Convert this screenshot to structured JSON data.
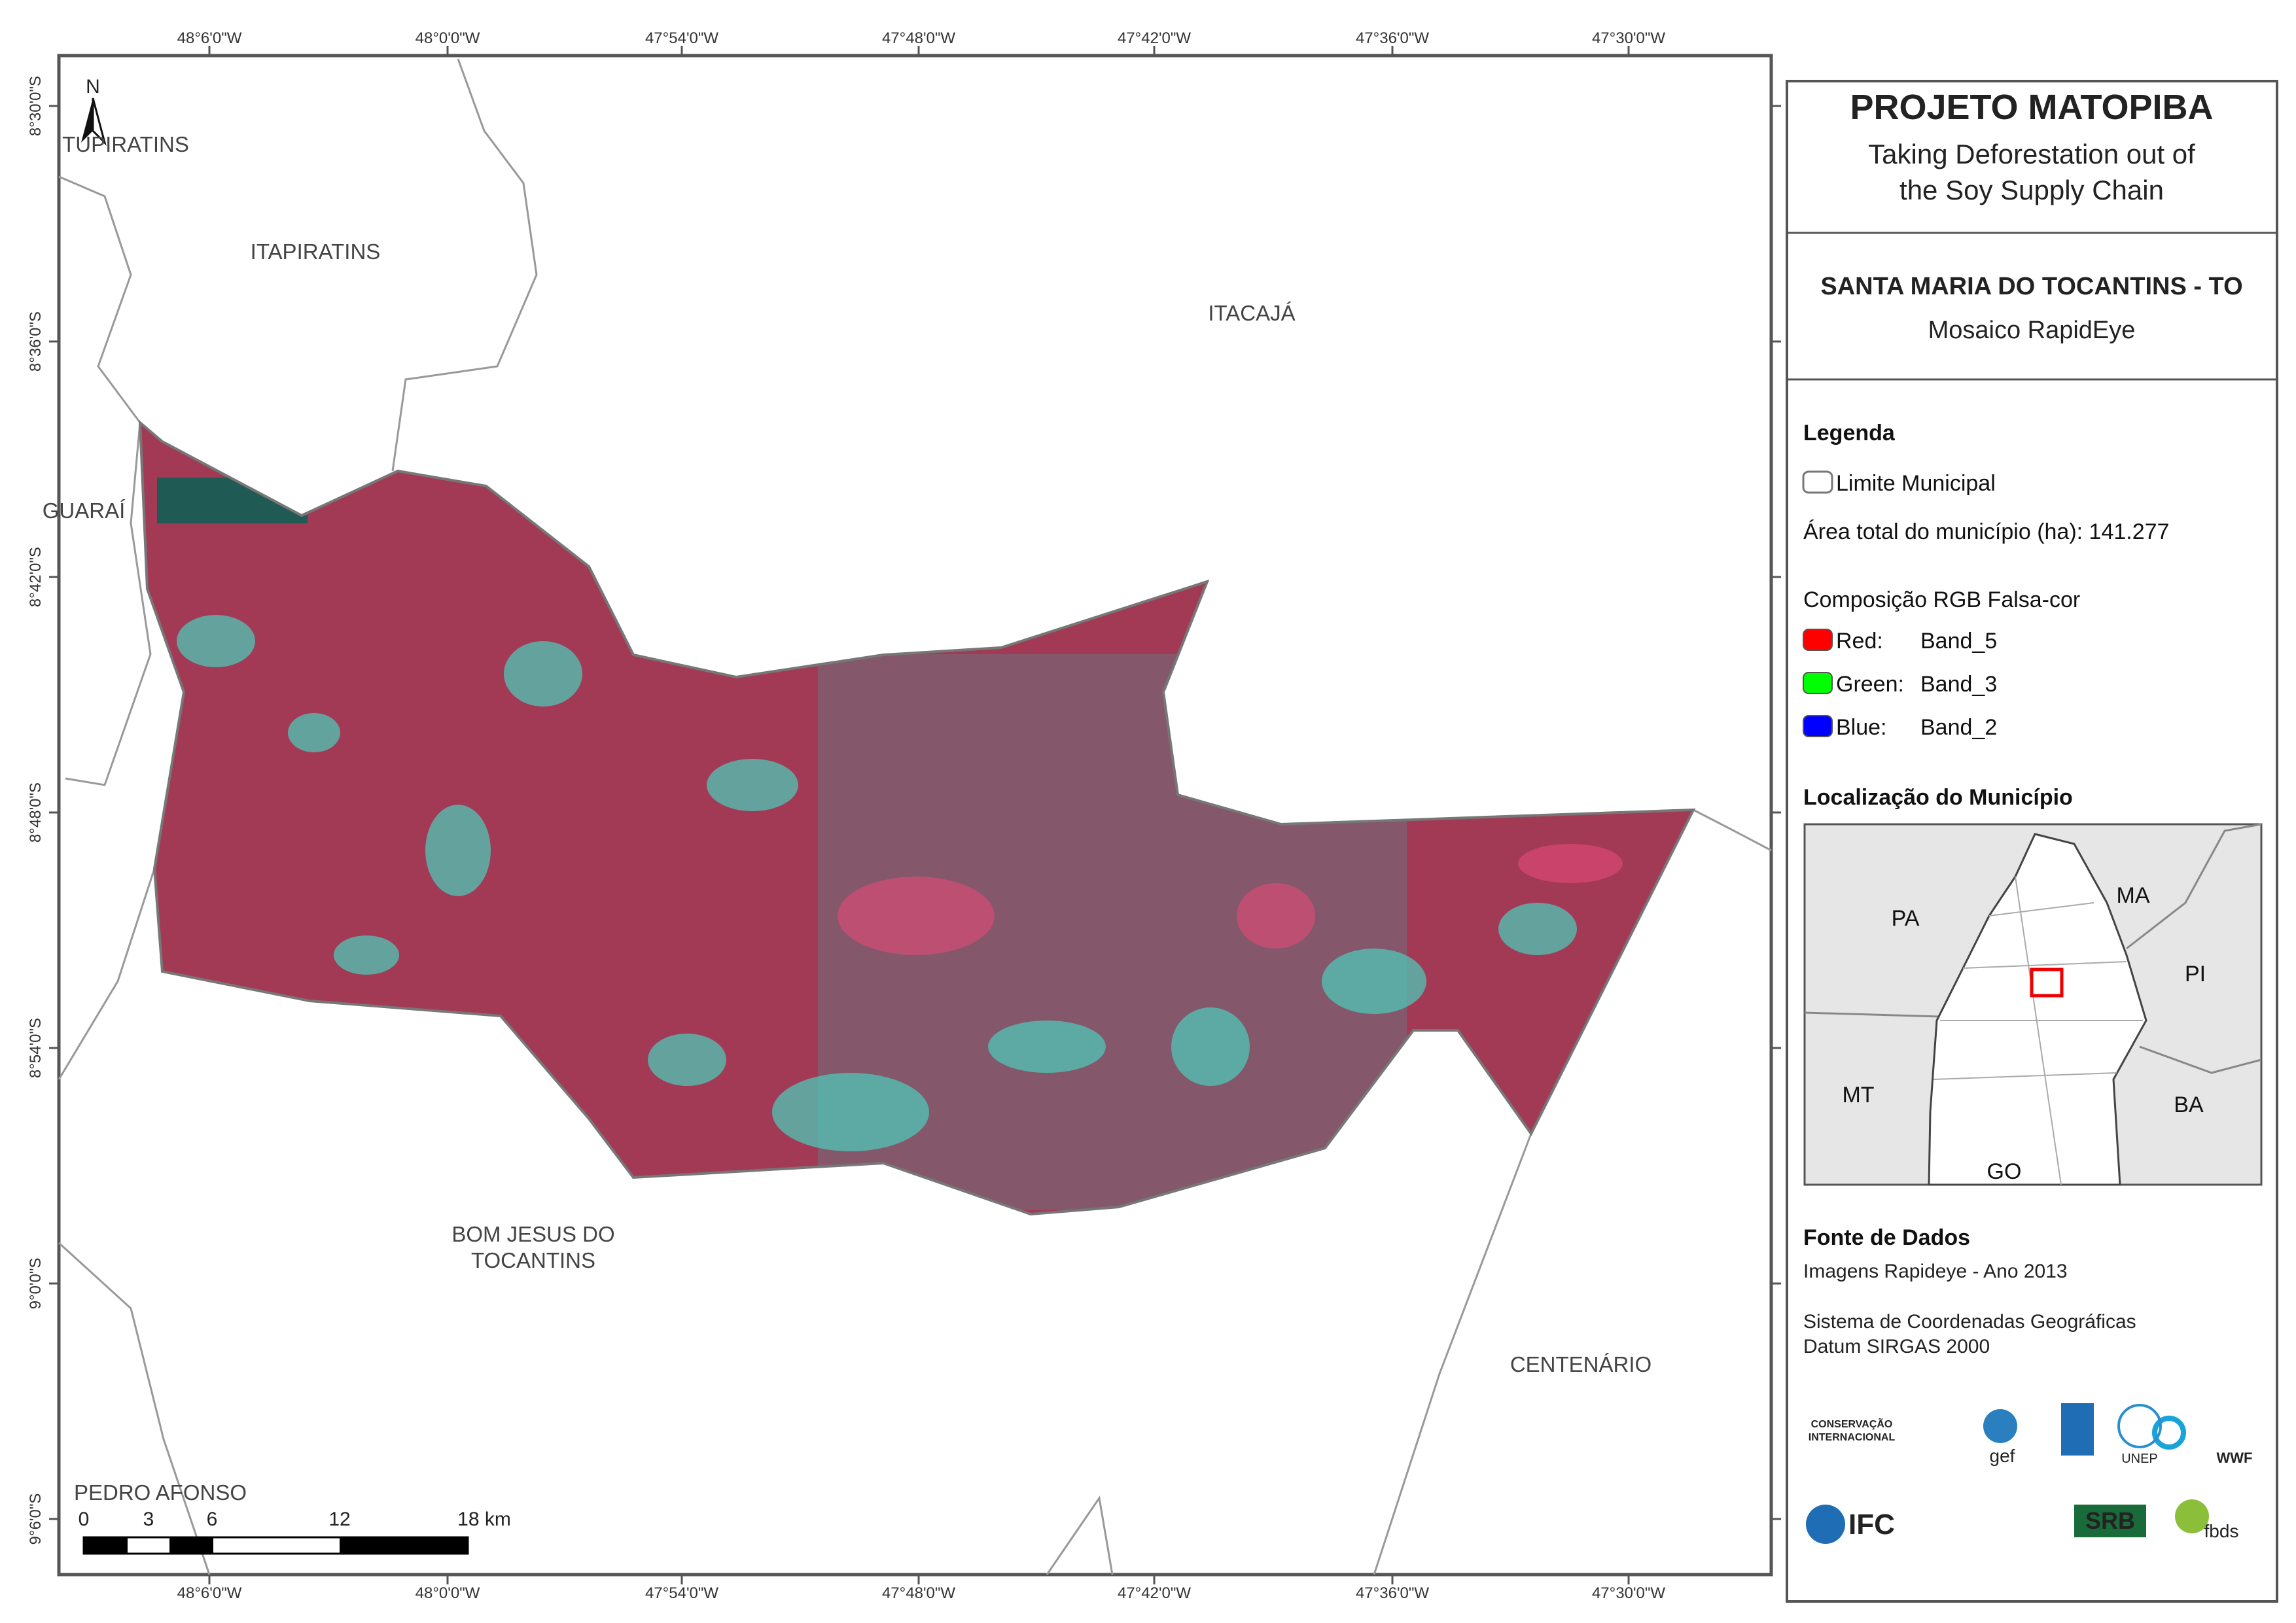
{
  "map": {
    "north": "N",
    "lon_labels": [
      "48°6'0\"W",
      "48°0'0\"W",
      "47°54'0\"W",
      "47°48'0\"W",
      "47°42'0\"W",
      "47°36'0\"W",
      "47°30'0\"W"
    ],
    "lat_labels": [
      "8°30'0\"S",
      "8°36'0\"S",
      "8°42'0\"S",
      "8°48'0\"S",
      "8°54'0\"S",
      "9°0'0\"S",
      "9°6'0\"S"
    ],
    "places": {
      "tupiratins": "TUPIRATINS",
      "itapiratins": "ITAPIRATINS",
      "itacaja": "ITACAJÁ",
      "guarai": "GUARAÍ",
      "bom_jesus": [
        "BOM JESUS DO",
        "TOCANTINS"
      ],
      "centenario": "CENTENÁRIO",
      "pedro_afonso": "PEDRO AFONSO"
    },
    "scale_labels": [
      "0",
      "3",
      "6",
      "12",
      "18 km"
    ]
  },
  "panel": {
    "title": "PROJETO MATOPIBA",
    "subtitle": [
      "Taking Deforestation out of",
      "the Soy Supply Chain"
    ],
    "municipality": "SANTA MARIA DO TOCANTINS - TO",
    "mosaic": "Mosaico RapidEye",
    "legend_title": "Legenda",
    "limit": "Limite Municipal",
    "area": "Área total do município (ha): 141.277",
    "composition": "Composição RGB Falsa-cor",
    "bands": [
      [
        "Red:",
        "Band_5"
      ],
      [
        "Green:",
        "Band_3"
      ],
      [
        "Blue:",
        "Band_2"
      ]
    ],
    "location_title": "Localização do Município",
    "states": [
      "PA",
      "MA",
      "PI",
      "MT",
      "BA",
      "GO"
    ],
    "source_title": "Fonte de Dados",
    "source_lines": [
      "Imagens Rapideye - Ano 2013",
      "Sistema de Coordenadas Geográficas",
      "Datum SIRGAS 2000"
    ],
    "logos": [
      "CONSERVAÇÃO",
      "INTERNACIONAL",
      "gef",
      "UNEP",
      "WWF",
      "IFC",
      "SRB",
      "fbds"
    ]
  }
}
